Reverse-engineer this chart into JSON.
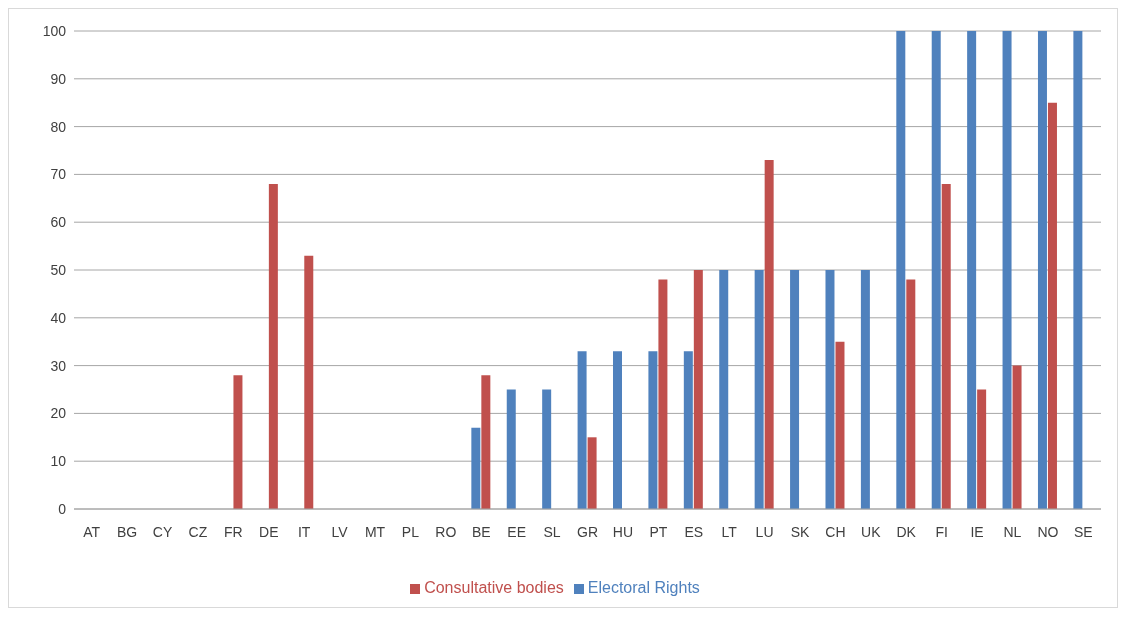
{
  "chart_data": {
    "type": "bar",
    "categories": [
      "AT",
      "BG",
      "CY",
      "CZ",
      "FR",
      "DE",
      "IT",
      "LV",
      "MT",
      "PL",
      "RO",
      "BE",
      "EE",
      "SL",
      "GR",
      "HU",
      "PT",
      "ES",
      "LT",
      "LU",
      "SK",
      "CH",
      "UK",
      "DK",
      "FI",
      "IE",
      "NL",
      "NO",
      "SE"
    ],
    "series": [
      {
        "name": "Electoral Rights",
        "color": "#4f81bd",
        "values": [
          0,
          0,
          0,
          0,
          0,
          0,
          0,
          0,
          0,
          0,
          0,
          17,
          25,
          25,
          33,
          33,
          33,
          33,
          50,
          50,
          50,
          50,
          50,
          100,
          100,
          100,
          100,
          100,
          100
        ]
      },
      {
        "name": "Consultative bodies",
        "color": "#c0504d",
        "values": [
          0,
          0,
          0,
          0,
          28,
          68,
          53,
          0,
          0,
          0,
          0,
          28,
          0,
          0,
          15,
          0,
          48,
          50,
          0,
          73,
          0,
          35,
          0,
          48,
          68,
          25,
          30,
          85,
          0
        ]
      }
    ],
    "ylim": [
      0,
      100
    ],
    "yticks": [
      0,
      10,
      20,
      30,
      40,
      50,
      60,
      70,
      80,
      90,
      100
    ],
    "grid": "y",
    "legend": "bottom"
  }
}
